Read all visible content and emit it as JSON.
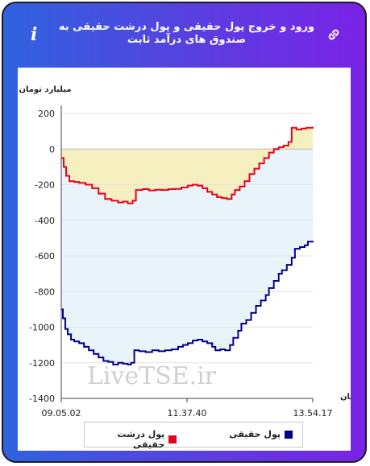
{
  "header": {
    "title": "ورود و خروج پول حقیقی و پول درشت حقیقی به صندوق های درآمد ثابت",
    "info_icon": "info-icon",
    "link_icon": "link-icon",
    "watermark": "LiveTSE.ir"
  },
  "colors": {
    "accent_gradient": [
      "#2f63e0",
      "#7a22e6"
    ],
    "series_real": "#00008b",
    "series_big": "#e8001c",
    "fill_top": "#f6efc0",
    "fill_bottom": "#e9f3fa"
  },
  "chart_data": {
    "type": "line",
    "ylabel": "میلیارد تومان",
    "xlabel": "زمان",
    "ylim": [
      -1400,
      200
    ],
    "yticks": [
      200,
      0,
      -200,
      -400,
      -600,
      -800,
      -1000,
      -1200,
      -1400
    ],
    "xticks": [
      "09.05.02",
      "11.37.40",
      "13.54.17"
    ],
    "x_range": [
      0,
      310
    ],
    "grid": true,
    "legend_position": "bottom",
    "series": [
      {
        "name": "پول حقیقی",
        "color": "#00008b",
        "points": [
          [
            0,
            -900
          ],
          [
            2,
            -950
          ],
          [
            5,
            -1010
          ],
          [
            8,
            -1040
          ],
          [
            12,
            -1070
          ],
          [
            16,
            -1080
          ],
          [
            22,
            -1090
          ],
          [
            28,
            -1110
          ],
          [
            34,
            -1130
          ],
          [
            40,
            -1150
          ],
          [
            46,
            -1170
          ],
          [
            52,
            -1190
          ],
          [
            58,
            -1195
          ],
          [
            64,
            -1210
          ],
          [
            70,
            -1200
          ],
          [
            76,
            -1205
          ],
          [
            82,
            -1210
          ],
          [
            86,
            -1200
          ],
          [
            90,
            -1130
          ],
          [
            96,
            -1135
          ],
          [
            104,
            -1140
          ],
          [
            112,
            -1130
          ],
          [
            120,
            -1135
          ],
          [
            128,
            -1130
          ],
          [
            136,
            -1125
          ],
          [
            144,
            -1110
          ],
          [
            150,
            -1100
          ],
          [
            156,
            -1090
          ],
          [
            162,
            -1075
          ],
          [
            168,
            -1070
          ],
          [
            174,
            -1080
          ],
          [
            180,
            -1090
          ],
          [
            186,
            -1110
          ],
          [
            190,
            -1130
          ],
          [
            196,
            -1125
          ],
          [
            202,
            -1130
          ],
          [
            208,
            -1100
          ],
          [
            212,
            -1060
          ],
          [
            218,
            -1020
          ],
          [
            222,
            -980
          ],
          [
            228,
            -960
          ],
          [
            234,
            -920
          ],
          [
            240,
            -880
          ],
          [
            246,
            -850
          ],
          [
            252,
            -820
          ],
          [
            256,
            -780
          ],
          [
            262,
            -740
          ],
          [
            268,
            -700
          ],
          [
            272,
            -680
          ],
          [
            278,
            -650
          ],
          [
            284,
            -610
          ],
          [
            288,
            -560
          ],
          [
            294,
            -550
          ],
          [
            300,
            -540
          ],
          [
            304,
            -520
          ],
          [
            310,
            -515
          ]
        ]
      },
      {
        "name": "پول درشت حقیقی",
        "color": "#e8001c",
        "points": [
          [
            0,
            -50
          ],
          [
            3,
            -100
          ],
          [
            6,
            -150
          ],
          [
            10,
            -180
          ],
          [
            16,
            -185
          ],
          [
            22,
            -190
          ],
          [
            30,
            -200
          ],
          [
            38,
            -220
          ],
          [
            46,
            -250
          ],
          [
            54,
            -280
          ],
          [
            62,
            -290
          ],
          [
            70,
            -300
          ],
          [
            76,
            -295
          ],
          [
            82,
            -305
          ],
          [
            88,
            -290
          ],
          [
            92,
            -230
          ],
          [
            100,
            -225
          ],
          [
            108,
            -232
          ],
          [
            116,
            -228
          ],
          [
            124,
            -230
          ],
          [
            132,
            -225
          ],
          [
            140,
            -224
          ],
          [
            148,
            -215
          ],
          [
            156,
            -205
          ],
          [
            162,
            -200
          ],
          [
            168,
            -205
          ],
          [
            174,
            -220
          ],
          [
            180,
            -240
          ],
          [
            186,
            -255
          ],
          [
            192,
            -270
          ],
          [
            198,
            -275
          ],
          [
            204,
            -280
          ],
          [
            210,
            -255
          ],
          [
            214,
            -230
          ],
          [
            220,
            -210
          ],
          [
            226,
            -180
          ],
          [
            232,
            -140
          ],
          [
            238,
            -110
          ],
          [
            244,
            -80
          ],
          [
            250,
            -50
          ],
          [
            256,
            -20
          ],
          [
            262,
            0
          ],
          [
            268,
            10
          ],
          [
            274,
            20
          ],
          [
            280,
            40
          ],
          [
            284,
            120
          ],
          [
            290,
            110
          ],
          [
            296,
            115
          ],
          [
            302,
            120
          ],
          [
            310,
            125
          ]
        ]
      }
    ]
  }
}
